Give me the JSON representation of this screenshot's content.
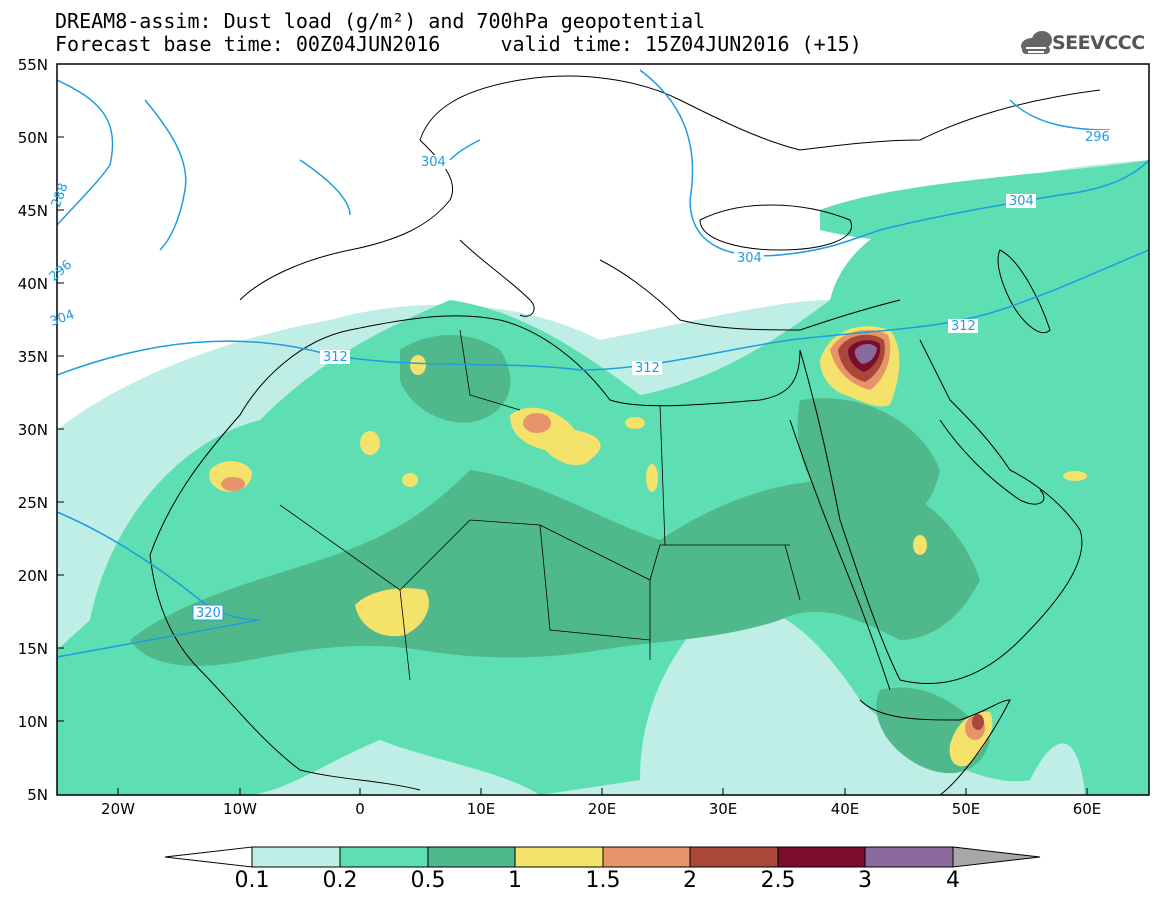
{
  "header": {
    "line1": "DREAM8-assim: Dust load (g/m²) and 700hPa geopotential",
    "line2": "Forecast base time: 00Z04JUN2016     valid time: 15Z04JUN2016 (+15)",
    "logo_text": "SEEVCCC"
  },
  "axes": {
    "lat_labels": [
      "55N",
      "50N",
      "45N",
      "40N",
      "35N",
      "30N",
      "25N",
      "20N",
      "15N",
      "10N",
      "5N"
    ],
    "lon_labels": [
      "20W",
      "10W",
      "0",
      "10E",
      "20E",
      "30E",
      "40E",
      "50E",
      "60E"
    ]
  },
  "contours": {
    "labels": [
      "304",
      "304",
      "304",
      "296",
      "312",
      "312",
      "312",
      "320",
      "288",
      "296",
      "304"
    ]
  },
  "colorbar": {
    "labels": [
      "0.1",
      "0.2",
      "0.5",
      "1",
      "1.5",
      "2",
      "2.5",
      "3",
      "4"
    ],
    "colors": [
      "#bfeee6",
      "#5edfb3",
      "#50b98c",
      "#f4e26a",
      "#e8946a",
      "#a9473b",
      "#7b0d2c",
      "#8a6a9c",
      "#a8a8a8"
    ]
  }
}
